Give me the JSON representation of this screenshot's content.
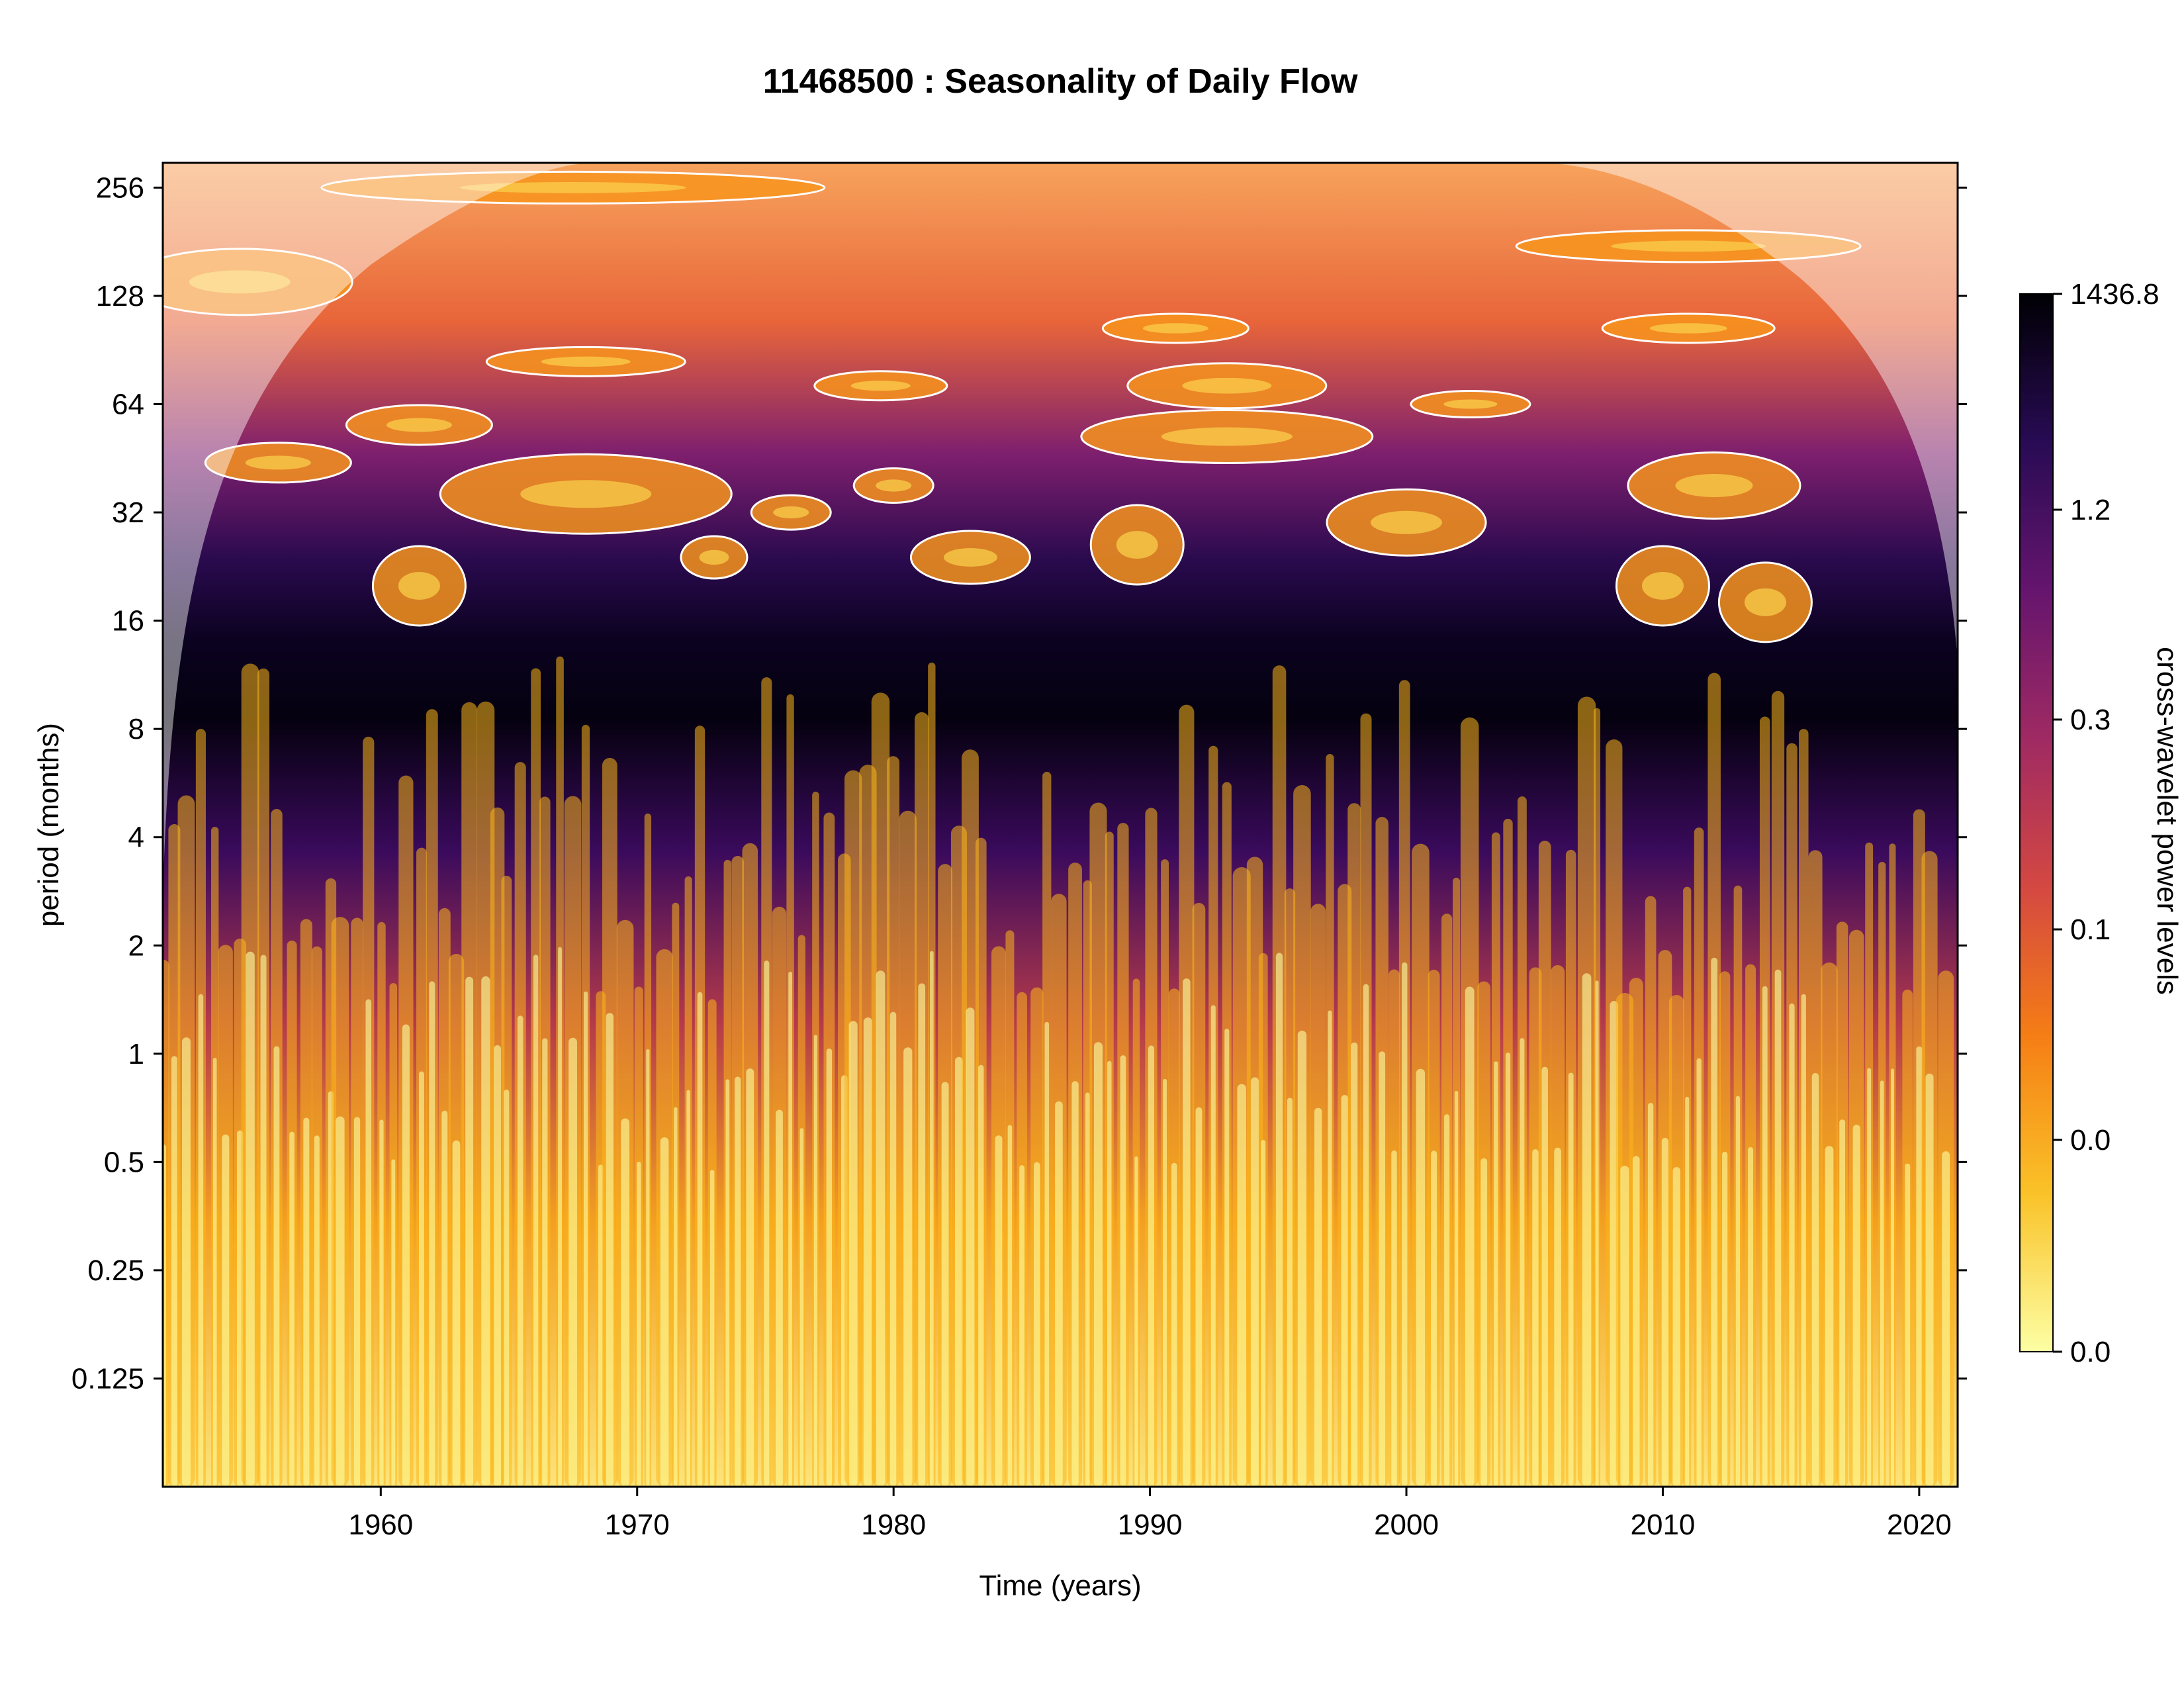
{
  "chart_data": {
    "type": "heatmap",
    "title": "11468500 : Seasonality of Daily Flow",
    "xlabel": "Time (years)",
    "ylabel": "period (months)",
    "xlim": [
      1951.5,
      2021.5
    ],
    "x_ticks": [
      1960,
      1970,
      1980,
      1990,
      2000,
      2010,
      2020
    ],
    "y_scale": "log2",
    "ylim": [
      0.0625,
      300
    ],
    "y_ticks": [
      {
        "value": 256,
        "label": "256"
      },
      {
        "value": 128,
        "label": "128"
      },
      {
        "value": 64,
        "label": "64"
      },
      {
        "value": 32,
        "label": "32"
      },
      {
        "value": 16,
        "label": "16"
      },
      {
        "value": 8,
        "label": "8"
      },
      {
        "value": 4,
        "label": "4"
      },
      {
        "value": 2,
        "label": "2"
      },
      {
        "value": 1,
        "label": "1"
      },
      {
        "value": 0.5,
        "label": "0.5"
      },
      {
        "value": 0.25,
        "label": "0.25"
      },
      {
        "value": 0.125,
        "label": "0.125"
      }
    ],
    "colorbar": {
      "label": "cross-wavelet power levels",
      "tick_labels": [
        "1436.8",
        "1.2",
        "0.3",
        "0.1",
        "0.0",
        "0.0"
      ],
      "colors": [
        "#000004",
        "#280b54",
        "#65156e",
        "#9f2a63",
        "#d44842",
        "#f57d15",
        "#fac228",
        "#fcffa4"
      ]
    },
    "legend": "none",
    "grid": false,
    "significance_contours": true,
    "cone_of_influence": true
  }
}
